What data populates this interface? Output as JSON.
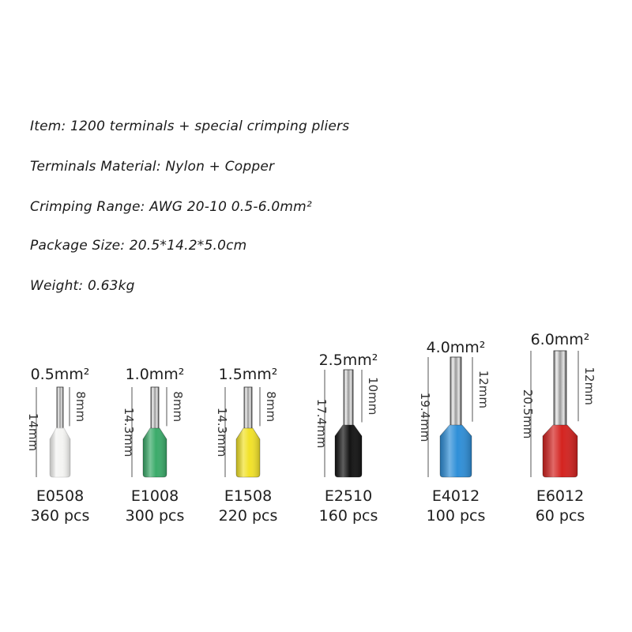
{
  "specs": {
    "item": "Item: 1200 terminals + special crimping pliers",
    "material": "Terminals Material: Nylon + Copper",
    "crimping_range": "Crimping Range: AWG 20-10  0.5-6.0mm²",
    "package_size": "Package Size: 20.5*14.2*5.0cm",
    "weight": "Weight: 0.63kg"
  },
  "terminals": [
    {
      "size_label": "0.5mm²",
      "total_length": "14mm",
      "pin_length": "8mm",
      "model": "E0508",
      "quantity": "360 pcs",
      "color": "#f4f4f2"
    },
    {
      "size_label": "1.0mm²",
      "total_length": "14.3mm",
      "pin_length": "8mm",
      "model": "E1008",
      "quantity": "300 pcs",
      "color": "#3bab6a"
    },
    {
      "size_label": "1.5mm²",
      "total_length": "14.3mm",
      "pin_length": "8mm",
      "model": "E1508",
      "quantity": "220 pcs",
      "color": "#f2e229"
    },
    {
      "size_label": "2.5mm²",
      "total_length": "17.4mm",
      "pin_length": "10mm",
      "model": "E2510",
      "quantity": "160 pcs",
      "color": "#141414"
    },
    {
      "size_label": "4.0mm²",
      "total_length": "19.4mm",
      "pin_length": "12mm",
      "model": "E4012",
      "quantity": "100 pcs",
      "color": "#2f8fd8"
    },
    {
      "size_label": "6.0mm²",
      "total_length": "20.5mm",
      "pin_length": "12mm",
      "model": "E6012",
      "quantity": "60 pcs",
      "color": "#d42320"
    }
  ]
}
